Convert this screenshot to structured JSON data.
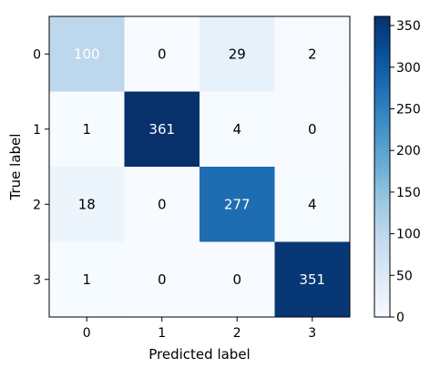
{
  "chart_data": {
    "type": "heatmap",
    "title": "",
    "xlabel": "Predicted label",
    "ylabel": "True label",
    "x_categories": [
      "0",
      "1",
      "2",
      "3"
    ],
    "y_categories": [
      "0",
      "1",
      "2",
      "3"
    ],
    "values": [
      [
        100,
        0,
        29,
        2
      ],
      [
        1,
        361,
        4,
        0
      ],
      [
        18,
        0,
        277,
        4
      ],
      [
        1,
        0,
        0,
        351
      ]
    ],
    "colormap": "Blues",
    "colorbar": {
      "range": [
        0,
        361
      ],
      "ticks": [
        0,
        50,
        100,
        150,
        200,
        250,
        300,
        350
      ],
      "tick_labels": [
        "0",
        "50",
        "100",
        "150",
        "200",
        "250",
        "300",
        "350"
      ]
    },
    "grid": false
  }
}
